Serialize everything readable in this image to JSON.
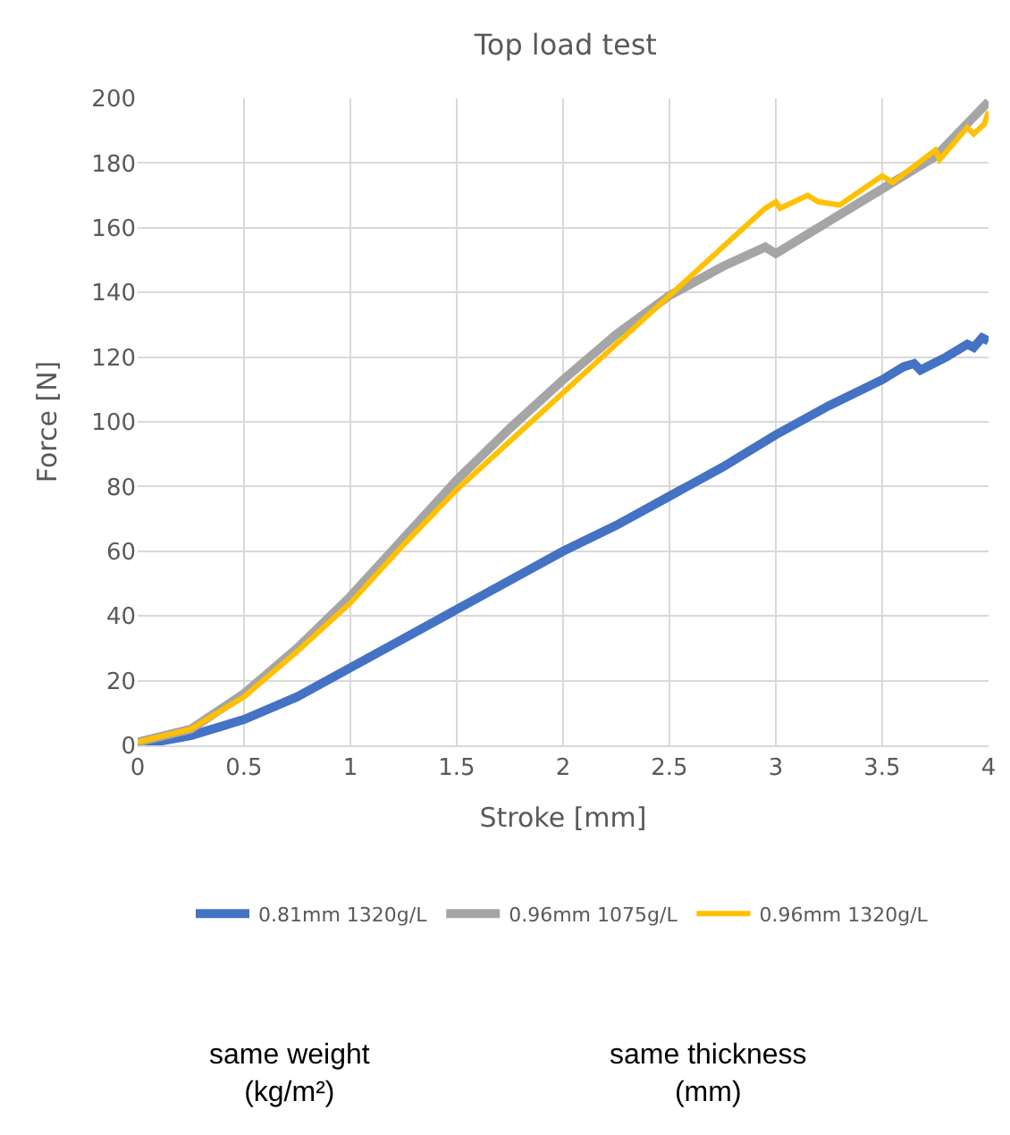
{
  "chart_data": {
    "type": "line",
    "title": "Top load test",
    "xlabel": "Stroke [mm]",
    "ylabel": "Force [N]",
    "xlim": [
      0,
      4
    ],
    "xticks": [
      0,
      0.5,
      1,
      1.5,
      2,
      2.5,
      3,
      3.5,
      4
    ],
    "ylim": [
      0,
      200
    ],
    "yticks": [
      0,
      20,
      40,
      60,
      80,
      100,
      120,
      140,
      160,
      180,
      200
    ],
    "grid": true,
    "legend": "bottom",
    "marker": "none",
    "line_style": "solid",
    "series": [
      {
        "name": "0.81mm 1320g/L",
        "color": "#4472c4",
        "x": [
          0,
          0.25,
          0.5,
          0.75,
          1,
          1.25,
          1.5,
          1.75,
          2,
          2.25,
          2.5,
          2.75,
          3,
          3.25,
          3.5,
          3.6,
          3.65,
          3.68,
          3.8,
          3.9,
          3.93,
          3.97,
          4
        ],
        "values": [
          0,
          3,
          8,
          15,
          24,
          33,
          42,
          51,
          60,
          68,
          77,
          86,
          96,
          105,
          113,
          117,
          118,
          116,
          120,
          124,
          123,
          126,
          125
        ]
      },
      {
        "name": "0.96mm 1075g/L",
        "color": "#a5a5a5",
        "x": [
          0,
          0.25,
          0.5,
          0.75,
          1,
          1.25,
          1.5,
          1.75,
          2,
          2.25,
          2.5,
          2.75,
          2.95,
          3,
          3.25,
          3.5,
          3.75,
          4
        ],
        "values": [
          1,
          5,
          16,
          30,
          46,
          64,
          82,
          98,
          113,
          127,
          139,
          148,
          154,
          152,
          162,
          172,
          182,
          199
        ]
      },
      {
        "name": "0.96mm 1320g/L",
        "color": "#ffc000",
        "x": [
          0,
          0.25,
          0.5,
          0.75,
          1,
          1.25,
          1.5,
          1.75,
          2,
          2.25,
          2.5,
          2.75,
          2.95,
          3,
          3.02,
          3.15,
          3.2,
          3.3,
          3.5,
          3.55,
          3.75,
          3.77,
          3.9,
          3.93,
          3.98,
          4
        ],
        "values": [
          1,
          5,
          15,
          29,
          44,
          62,
          79,
          94,
          109,
          124,
          139,
          154,
          166,
          168,
          166,
          170,
          168,
          167,
          176,
          174,
          184,
          181,
          191,
          189,
          192,
          196
        ]
      }
    ],
    "annotations": [
      "same weight (kg/m²)",
      "same thickness (mm)"
    ]
  }
}
